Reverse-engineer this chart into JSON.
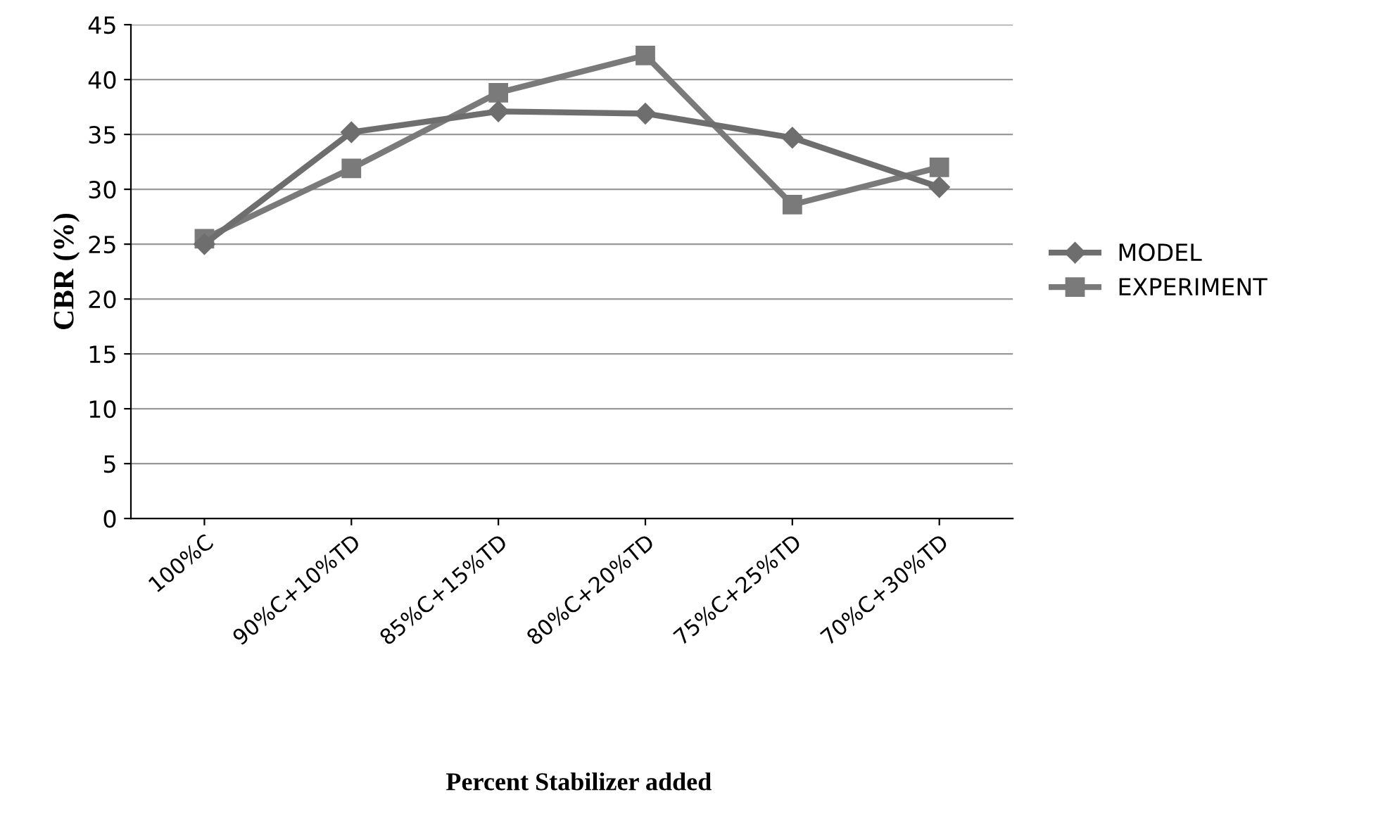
{
  "chart_data": {
    "type": "line",
    "xlabel": "Percent Stabilizer added",
    "ylabel": "CBR (%)",
    "categories": [
      "100%C",
      "90%C+10%TD",
      "85%C+15%TD",
      "80%C+20%TD",
      "75%C+25%TD",
      "70%C+30%TD"
    ],
    "series": [
      {
        "name": "MODEL",
        "color": "#6e6e6e",
        "marker": "diamond",
        "values": [
          25.0,
          35.2,
          37.1,
          36.9,
          34.7,
          30.2
        ]
      },
      {
        "name": "EXPERIMENT",
        "color": "#7a7a7a",
        "marker": "square",
        "values": [
          25.5,
          31.9,
          38.8,
          42.2,
          28.6,
          32.0
        ]
      }
    ],
    "ylim": [
      0,
      45
    ],
    "yticks": [
      0,
      5,
      10,
      15,
      20,
      25,
      30,
      35,
      40,
      45
    ],
    "grid": "y",
    "legend": "right",
    "line_style": "solid"
  }
}
